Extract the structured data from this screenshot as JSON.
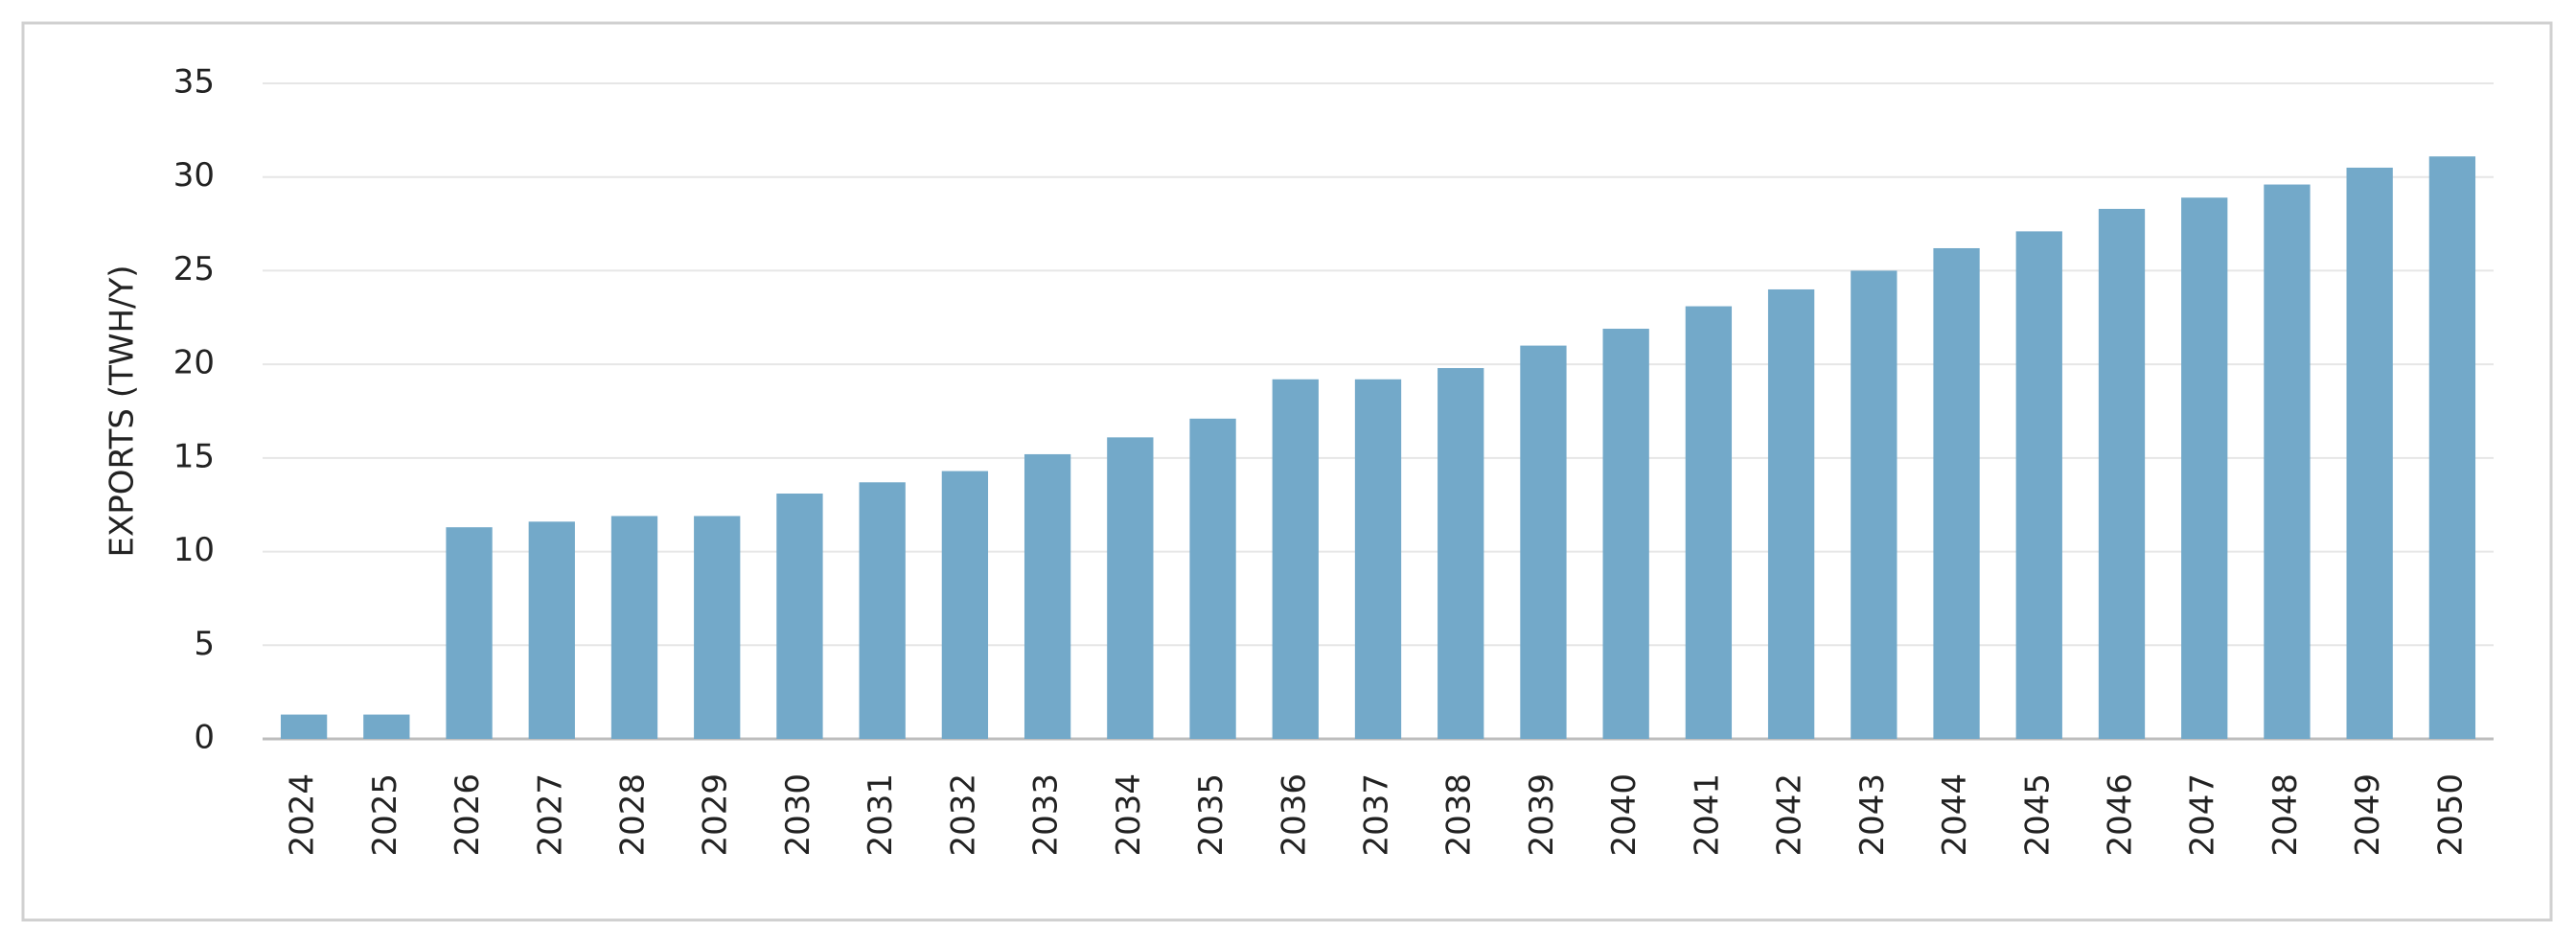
{
  "chart_data": {
    "type": "bar",
    "y_label": "EXPORTS (TWH/Y)",
    "categories": [
      "2024",
      "2025",
      "2026",
      "2027",
      "2028",
      "2029",
      "2030",
      "2031",
      "2032",
      "2033",
      "2034",
      "2035",
      "2036",
      "2037",
      "2038",
      "2039",
      "2040",
      "2041",
      "2042",
      "2043",
      "2044",
      "2045",
      "2046",
      "2047",
      "2048",
      "2049",
      "2050"
    ],
    "values": [
      1.3,
      1.3,
      11.3,
      11.6,
      11.9,
      11.9,
      13.1,
      13.7,
      14.3,
      15.2,
      16.1,
      17.1,
      19.2,
      19.2,
      19.8,
      21.0,
      21.9,
      23.1,
      24.0,
      25.0,
      26.2,
      27.1,
      28.3,
      28.9,
      29.6,
      30.5,
      31.1
    ],
    "color": "#73a9c9",
    "ylim": [
      0,
      35
    ],
    "yticks": [
      0,
      5,
      10,
      15,
      20,
      25,
      30,
      35
    ],
    "grid": true
  }
}
